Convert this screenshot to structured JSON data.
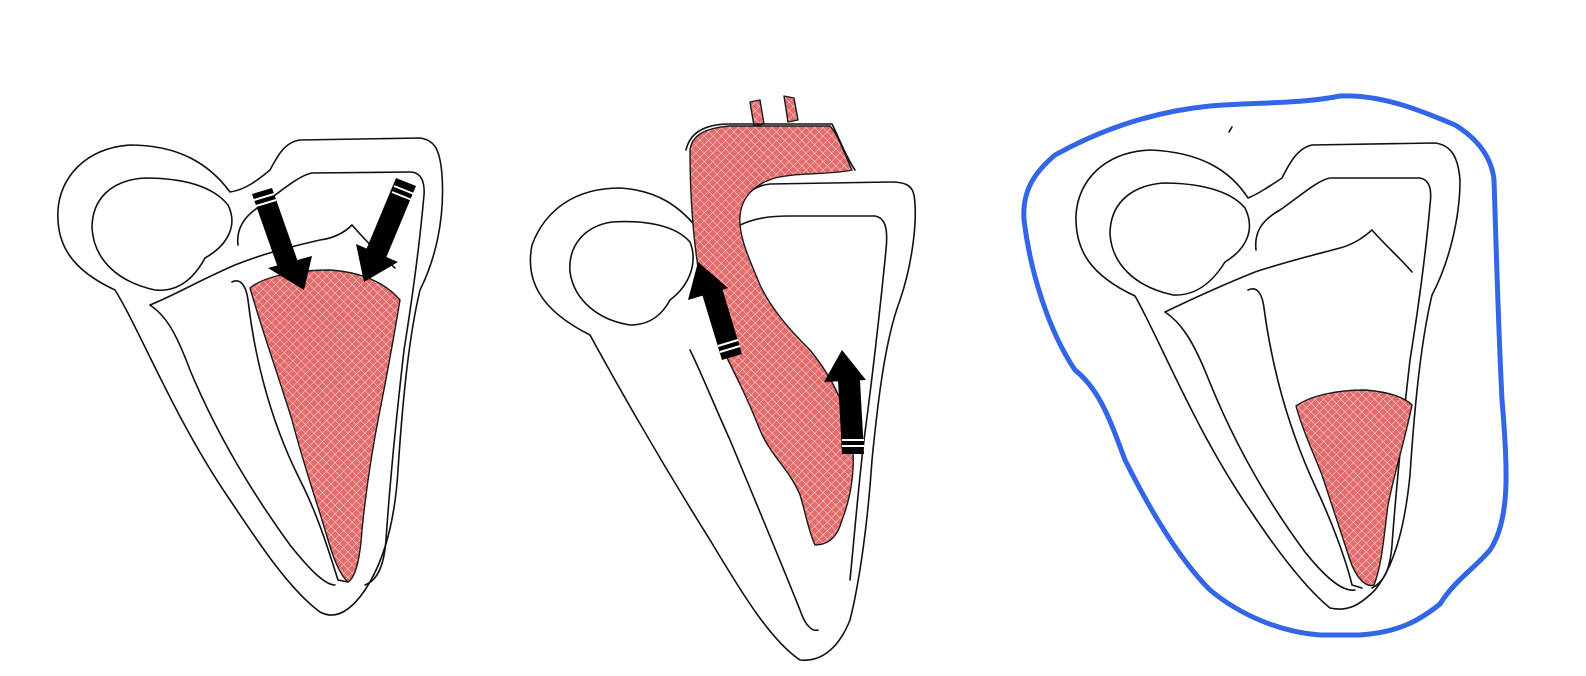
{
  "colors": {
    "blood": "#e36b6b",
    "blood_hatch": "#ffffff",
    "outline": "#111111",
    "arrow": "#000000",
    "pericardium": "#3366e6"
  },
  "panels": [
    {
      "name": "diastolic-filling",
      "blood_level": "full",
      "arrows": [
        "down",
        "down"
      ]
    },
    {
      "name": "systolic-ejection",
      "blood_level": "ejecting",
      "arrows": [
        "up",
        "up"
      ]
    },
    {
      "name": "pericardial-constraint",
      "blood_level": "reduced",
      "arrows": [],
      "boundary": "pericardium-outline"
    }
  ]
}
